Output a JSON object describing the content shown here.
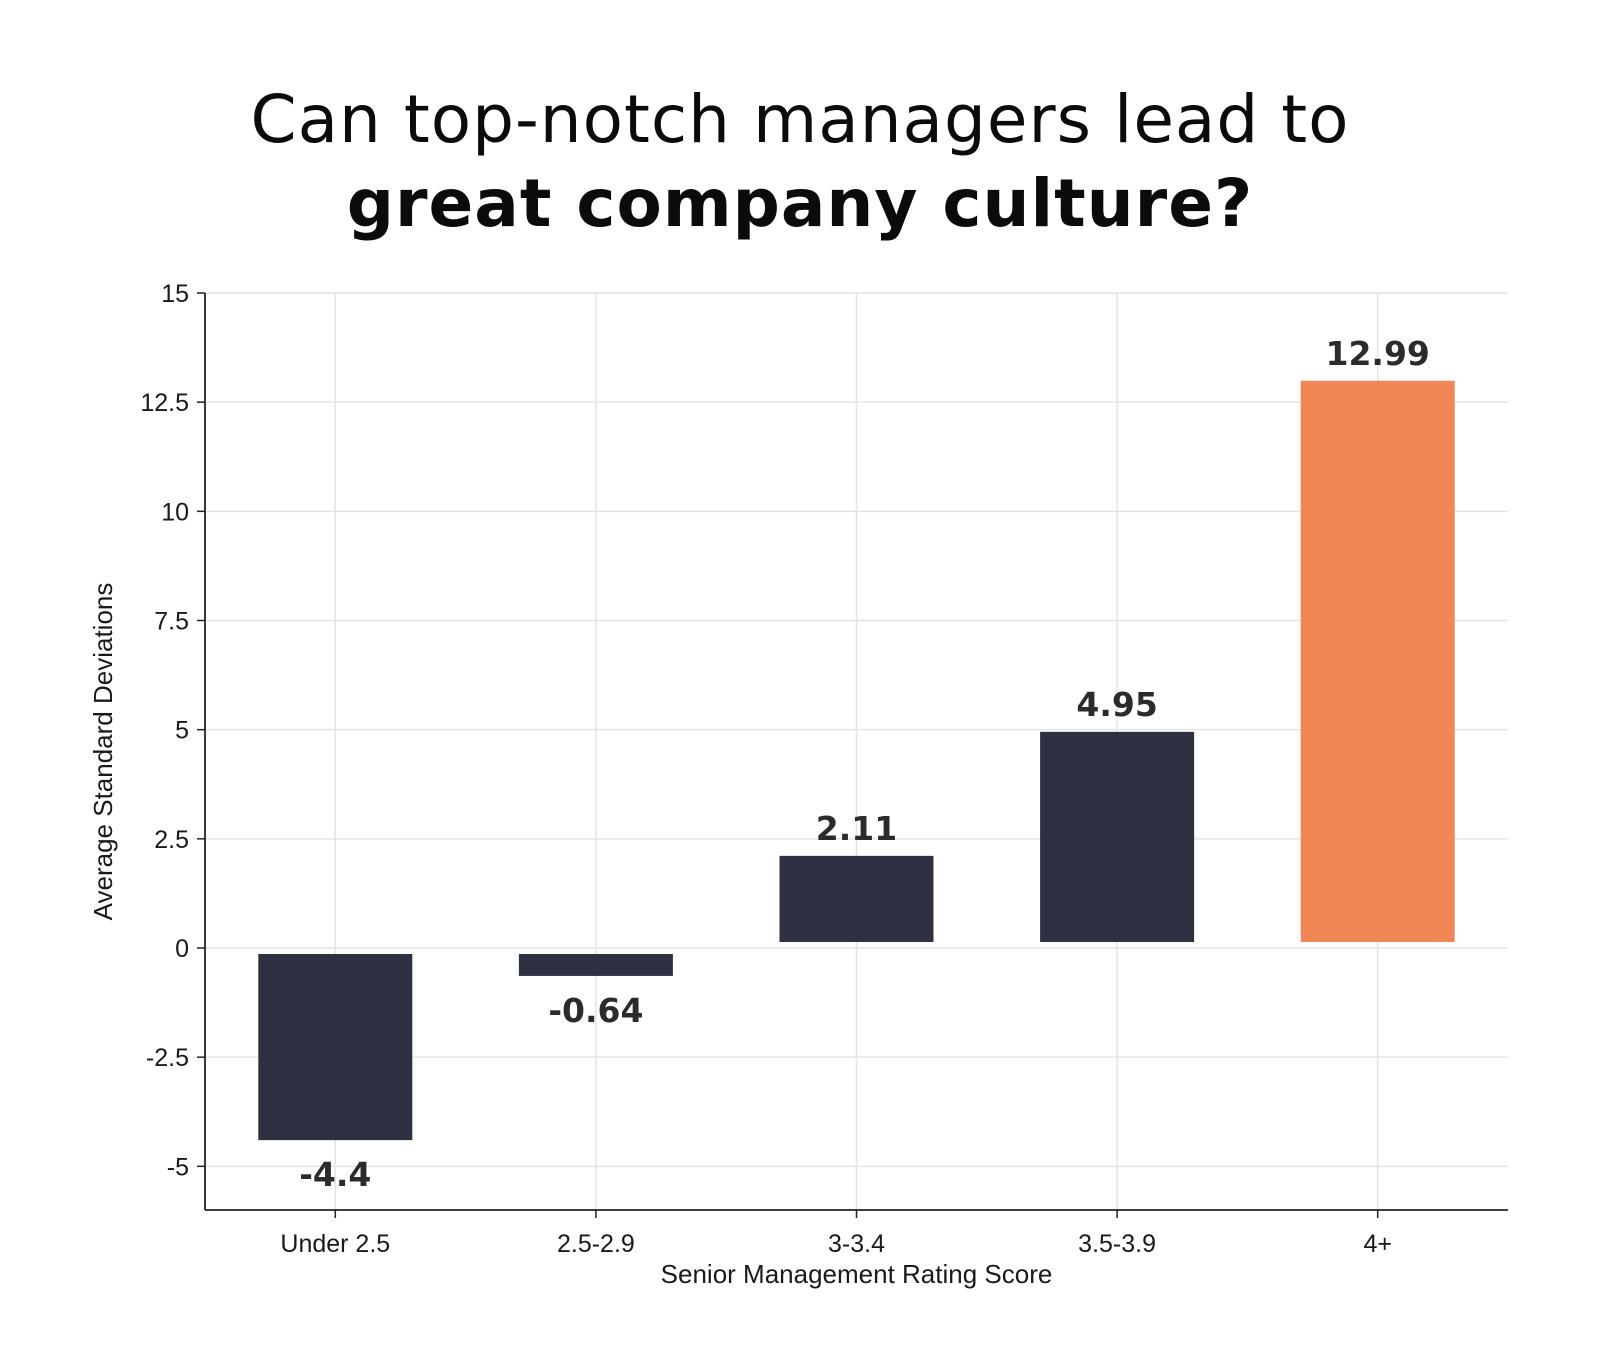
{
  "title": {
    "line1": "Can top-notch managers lead to",
    "line2": "great company culture?"
  },
  "chart_data": {
    "type": "bar",
    "categories": [
      "Under 2.5",
      "2.5-2.9",
      "3-3.4",
      "3.5-3.9",
      "4+"
    ],
    "values": [
      -4.4,
      -0.64,
      2.11,
      4.95,
      12.99
    ],
    "value_labels": [
      "-4.4",
      "-0.64",
      "2.11",
      "4.95",
      "12.99"
    ],
    "bar_colors": [
      "#2e3142",
      "#2e3142",
      "#2e3142",
      "#2e3142",
      "#f08555"
    ],
    "xlabel": "Senior Management Rating Score",
    "ylabel": "Average Standard Deviations",
    "ylim": [
      -6,
      15
    ],
    "yticks": [
      -5,
      -2.5,
      0,
      2.5,
      5,
      7.5,
      10,
      12.5,
      15
    ],
    "ytick_labels": [
      "-5",
      "-2.5",
      "0",
      "2.5",
      "5",
      "7.5",
      "10",
      "12.5",
      "15"
    ],
    "grid": true,
    "legend": "none"
  }
}
